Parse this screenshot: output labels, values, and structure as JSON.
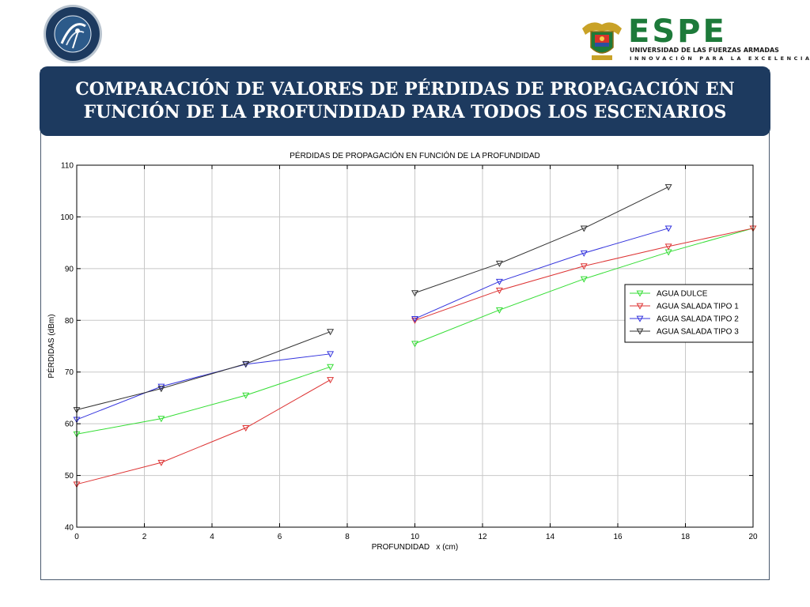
{
  "header": {
    "title": "COMPARACIÓN  DE  VALORES DE PÉRDIDAS DE PROPAGACIÓN  EN\nFUNCIÓN DE LA PROFUNDIDAD PARA  TODOS LOS ESCENARIOS",
    "logo_left": {
      "icon": "department-seal-icon",
      "color": "#1d3a5f"
    },
    "logo_right": {
      "icon": "espe-coat-of-arms-icon",
      "name": "ESPE",
      "subtitle": "UNIVERSIDAD DE LAS FUERZAS ARMADAS",
      "motto": "INNOVACIÓN PARA LA EXCELENCIA",
      "color": "#1d7a3a"
    },
    "banner_color": "#1d3a5f"
  },
  "chart_data": {
    "type": "line",
    "title": "PÉRDIDAS DE PROPAGACIÓN EN FUNCIÓN DE LA PROFUNDIDAD",
    "xlabel": "PROFUNDIDAD   x (cm)",
    "ylabel": "PÉRDIDAS (dBm)",
    "xlim": [
      0,
      20
    ],
    "ylim": [
      40,
      110
    ],
    "xticks": [
      0,
      2,
      4,
      6,
      8,
      10,
      12,
      14,
      16,
      18,
      20
    ],
    "yticks": [
      40,
      50,
      60,
      70,
      80,
      90,
      100,
      110
    ],
    "grid": true,
    "legend_position": "right",
    "series": [
      {
        "name": "AGUA DULCE",
        "color": "#33dd33",
        "marker": "triangle-down",
        "segments": [
          [
            [
              0,
              58.0
            ],
            [
              2.5,
              61.0
            ],
            [
              5,
              65.5
            ],
            [
              7.5,
              71.0
            ]
          ],
          [
            [
              10,
              75.5
            ],
            [
              12.5,
              82.0
            ],
            [
              15,
              88.0
            ],
            [
              17.5,
              93.2
            ],
            [
              20,
              97.8
            ]
          ]
        ]
      },
      {
        "name": "AGUA SALADA TIPO 1",
        "color": "#dd3333",
        "marker": "triangle-down",
        "segments": [
          [
            [
              0,
              48.3
            ],
            [
              2.5,
              52.5
            ],
            [
              5,
              59.2
            ],
            [
              7.5,
              68.5
            ]
          ],
          [
            [
              10,
              80.0
            ],
            [
              12.5,
              85.8
            ],
            [
              15,
              90.5
            ],
            [
              17.5,
              94.3
            ],
            [
              20,
              97.8
            ]
          ]
        ]
      },
      {
        "name": "AGUA SALADA TIPO 2",
        "color": "#3333dd",
        "marker": "triangle-down",
        "segments": [
          [
            [
              0,
              60.8
            ],
            [
              2.5,
              67.2
            ],
            [
              5,
              71.5
            ],
            [
              7.5,
              73.5
            ]
          ],
          [
            [
              10,
              80.3
            ],
            [
              12.5,
              87.5
            ],
            [
              15,
              93.0
            ],
            [
              17.5,
              97.8
            ]
          ]
        ]
      },
      {
        "name": "AGUA SALADA TIPO 3",
        "color": "#333333",
        "marker": "triangle-down",
        "segments": [
          [
            [
              0,
              62.7
            ],
            [
              2.5,
              66.8
            ],
            [
              5,
              71.6
            ],
            [
              7.5,
              77.8
            ]
          ],
          [
            [
              10,
              85.3
            ],
            [
              12.5,
              91.0
            ],
            [
              15,
              97.8
            ],
            [
              17.5,
              105.8
            ]
          ]
        ]
      }
    ]
  }
}
